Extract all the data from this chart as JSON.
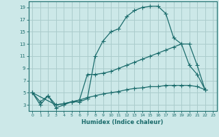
{
  "xlabel": "Humidex (Indice chaleur)",
  "background_color": "#cce8e8",
  "grid_color": "#aacccc",
  "line_color": "#1a6b6b",
  "xlim": [
    -0.5,
    23.5
  ],
  "ylim": [
    2.0,
    20.0
  ],
  "yticks": [
    3,
    5,
    7,
    9,
    11,
    13,
    15,
    17,
    19
  ],
  "xticks": [
    0,
    1,
    2,
    3,
    4,
    5,
    6,
    7,
    8,
    9,
    10,
    11,
    12,
    13,
    14,
    15,
    16,
    17,
    18,
    19,
    20,
    21,
    22,
    23
  ],
  "line1_x": [
    0,
    1,
    2,
    3,
    4,
    5,
    6,
    7,
    8,
    9,
    10,
    11,
    12,
    13,
    14,
    15,
    16,
    17,
    18,
    19,
    20,
    21,
    22
  ],
  "line1_y": [
    5.0,
    3.0,
    4.5,
    2.5,
    3.0,
    3.5,
    3.5,
    4.0,
    11.0,
    13.5,
    15.0,
    15.5,
    17.5,
    18.5,
    19.0,
    19.2,
    19.2,
    18.0,
    14.0,
    13.0,
    9.5,
    8.0,
    5.5
  ],
  "line2_x": [
    0,
    3,
    4,
    5,
    6,
    7,
    8,
    9,
    10,
    11,
    12,
    13,
    14,
    15,
    16,
    17,
    18,
    19,
    20,
    21,
    22
  ],
  "line2_y": [
    5.0,
    3.0,
    3.2,
    3.5,
    3.8,
    8.0,
    8.0,
    8.2,
    8.5,
    9.0,
    9.5,
    10.0,
    10.5,
    11.0,
    11.5,
    12.0,
    12.5,
    13.0,
    13.0,
    9.5,
    5.5
  ],
  "line3_x": [
    0,
    1,
    2,
    3,
    4,
    5,
    6,
    7,
    8,
    9,
    10,
    11,
    12,
    13,
    14,
    15,
    16,
    17,
    18,
    19,
    20,
    21,
    22
  ],
  "line3_y": [
    5.0,
    3.5,
    4.5,
    3.0,
    3.2,
    3.5,
    3.8,
    4.2,
    4.5,
    4.8,
    5.0,
    5.2,
    5.5,
    5.7,
    5.8,
    6.0,
    6.0,
    6.2,
    6.2,
    6.2,
    6.2,
    6.0,
    5.5
  ]
}
